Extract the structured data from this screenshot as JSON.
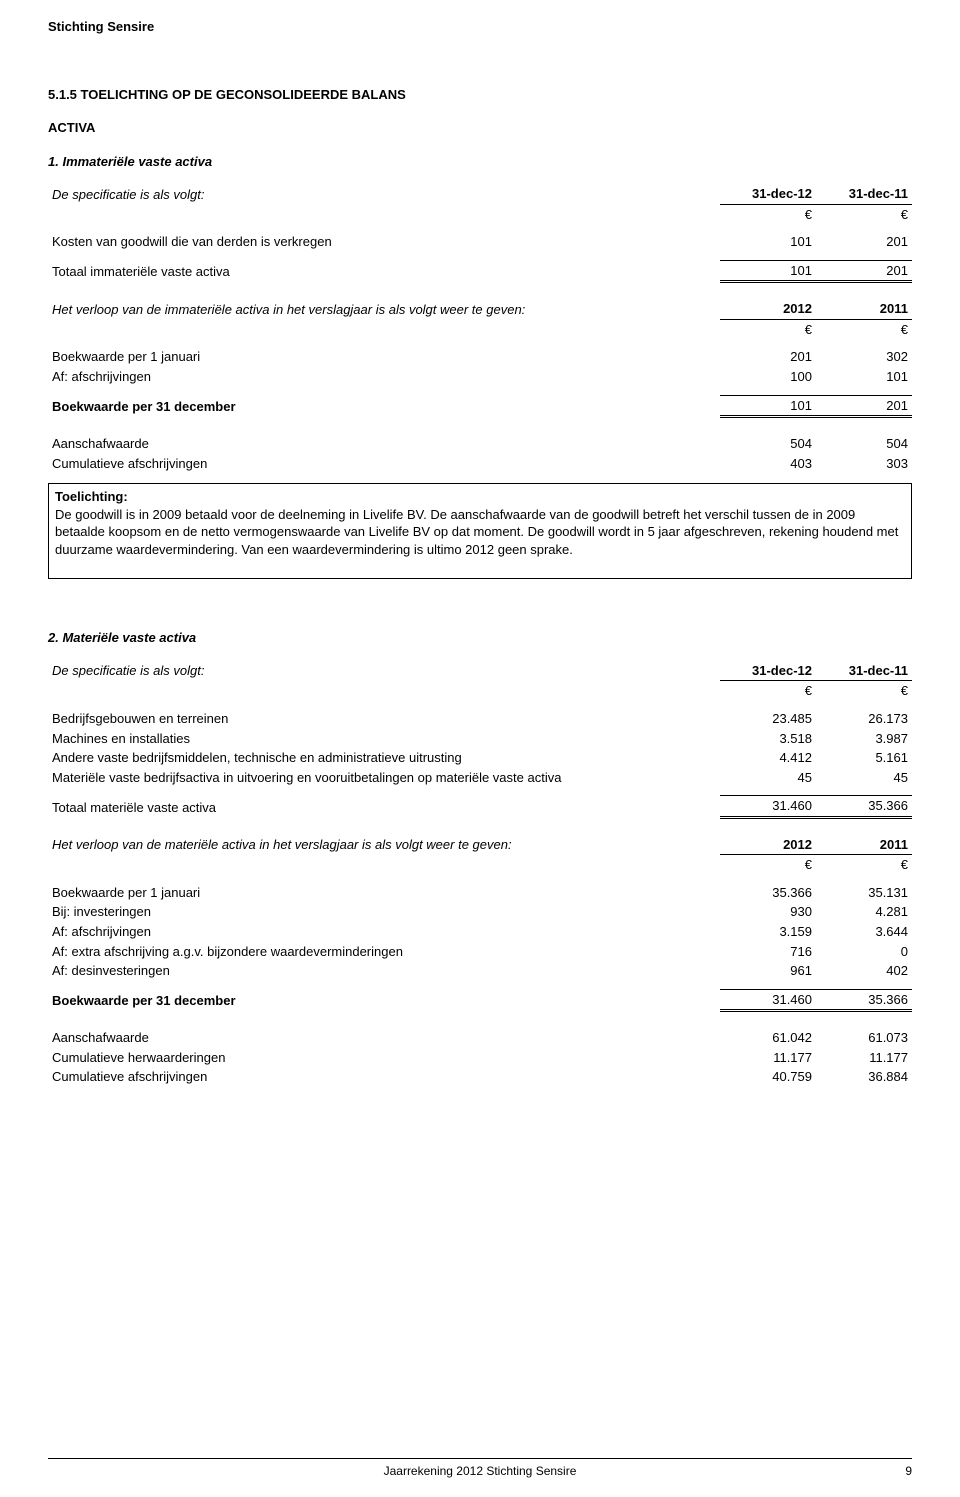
{
  "org": "Stichting Sensire",
  "section_title": "5.1.5 TOELICHTING OP DE GECONSOLIDEERDE BALANS",
  "activa_label": "ACTIVA",
  "s1": {
    "title": "1. Immateriële vaste activa",
    "spec_label": "De specificatie is als volgt:",
    "col1": "31-dec-12",
    "col2": "31-dec-11",
    "euro": "€",
    "rows": {
      "goodwill_label": "Kosten van goodwill die van derden is verkregen",
      "goodwill_v1": "101",
      "goodwill_v2": "201",
      "total_label": "Totaal immateriële vaste activa",
      "total_v1": "101",
      "total_v2": "201"
    },
    "movement_label": "Het verloop van de immateriële activa in het verslagjaar is als volgt weer te geven:",
    "mcol1": "2012",
    "mcol2": "2011",
    "m": {
      "bwk_jan_label": "Boekwaarde per 1 januari",
      "bwk_jan_v1": "201",
      "bwk_jan_v2": "302",
      "afsch_label": "Af: afschrijvingen",
      "afsch_v1": "100",
      "afsch_v2": "101",
      "bwk_dec_label": "Boekwaarde per 31 december",
      "bwk_dec_v1": "101",
      "bwk_dec_v2": "201",
      "aansch_label": "Aanschafwaarde",
      "aansch_v1": "504",
      "aansch_v2": "504",
      "cum_label": "Cumulatieve afschrijvingen",
      "cum_v1": "403",
      "cum_v2": "303"
    },
    "toelichting_head": "Toelichting:",
    "toelichting_text": "De goodwill is in 2009 betaald voor de deelneming in Livelife BV. De aanschafwaarde van de goodwill betreft het verschil tussen de in 2009 betaalde koopsom en de netto vermogenswaarde van Livelife BV op dat moment. De goodwill wordt in 5 jaar afgeschreven, rekening houdend met duurzame waardevermindering. Van een waardevermindering is ultimo 2012 geen sprake."
  },
  "s2": {
    "title": "2. Materiële vaste activa",
    "spec_label": "De specificatie is als volgt:",
    "col1": "31-dec-12",
    "col2": "31-dec-11",
    "euro": "€",
    "rows": {
      "r1_label": "Bedrijfsgebouwen en terreinen",
      "r1_v1": "23.485",
      "r1_v2": "26.173",
      "r2_label": "Machines en installaties",
      "r2_v1": "3.518",
      "r2_v2": "3.987",
      "r3_label": "Andere vaste bedrijfsmiddelen, technische en administratieve uitrusting",
      "r3_v1": "4.412",
      "r3_v2": "5.161",
      "r4_label": "Materiële vaste bedrijfsactiva in uitvoering en vooruitbetalingen op materiële vaste activa",
      "r4_v1": "45",
      "r4_v2": "45",
      "total_label": "Totaal materiële vaste activa",
      "total_v1": "31.460",
      "total_v2": "35.366"
    },
    "movement_label": "Het verloop van de materiële activa in het verslagjaar is als volgt weer te geven:",
    "mcol1": "2012",
    "mcol2": "2011",
    "m": {
      "bwk_jan_label": "Boekwaarde per 1 januari",
      "bwk_jan_v1": "35.366",
      "bwk_jan_v2": "35.131",
      "inv_label": "Bij: investeringen",
      "inv_v1": "930",
      "inv_v2": "4.281",
      "afsch_label": "Af: afschrijvingen",
      "afsch_v1": "3.159",
      "afsch_v2": "3.644",
      "extra_label": "Af: extra afschrijving a.g.v. bijzondere waardeverminderingen",
      "extra_v1": "716",
      "extra_v2": "0",
      "desinv_label": "Af: desinvesteringen",
      "desinv_v1": "961",
      "desinv_v2": "402",
      "bwk_dec_label": "Boekwaarde per 31 december",
      "bwk_dec_v1": "31.460",
      "bwk_dec_v2": "35.366",
      "aansch_label": "Aanschafwaarde",
      "aansch_v1": "61.042",
      "aansch_v2": "61.073",
      "herw_label": "Cumulatieve herwaarderingen",
      "herw_v1": "11.177",
      "herw_v2": "11.177",
      "cum_label": "Cumulatieve afschrijvingen",
      "cum_v1": "40.759",
      "cum_v2": "36.884"
    }
  },
  "footer": {
    "center": "Jaarrekening 2012 Stichting Sensire",
    "page": "9"
  }
}
